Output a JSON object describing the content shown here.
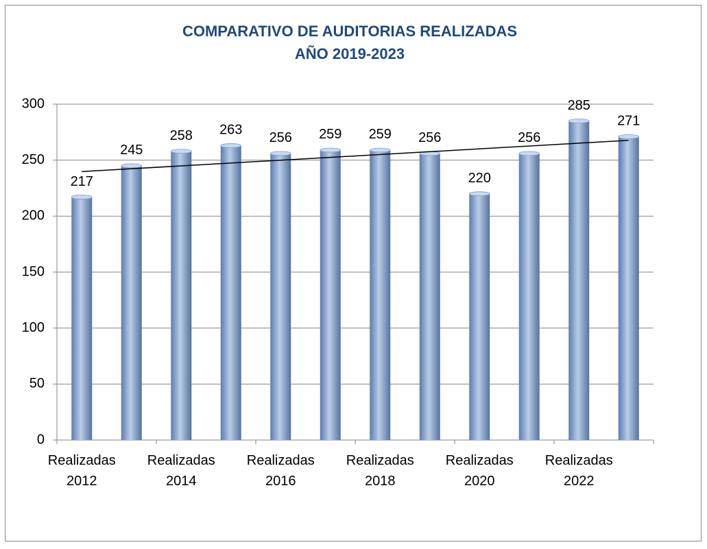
{
  "chart_data": {
    "type": "bar",
    "title": "COMPARATIVO DE AUDITORIAS REALIZADAS",
    "subtitle": "AÑO 2019-2023",
    "categories": [
      "Realizadas 2012",
      null,
      "Realizadas 2014",
      null,
      "Realizadas 2016",
      null,
      "Realizadas 2018",
      null,
      "Realizadas 2020",
      null,
      "Realizadas 2022",
      null
    ],
    "values": [
      217,
      245,
      258,
      263,
      256,
      259,
      259,
      256,
      220,
      256,
      285,
      271
    ],
    "color": "#95b3d7",
    "ylim": [
      0,
      300
    ],
    "yticks": [
      0,
      50,
      100,
      150,
      200,
      250,
      300
    ],
    "grid": true,
    "trendline": "linear"
  }
}
